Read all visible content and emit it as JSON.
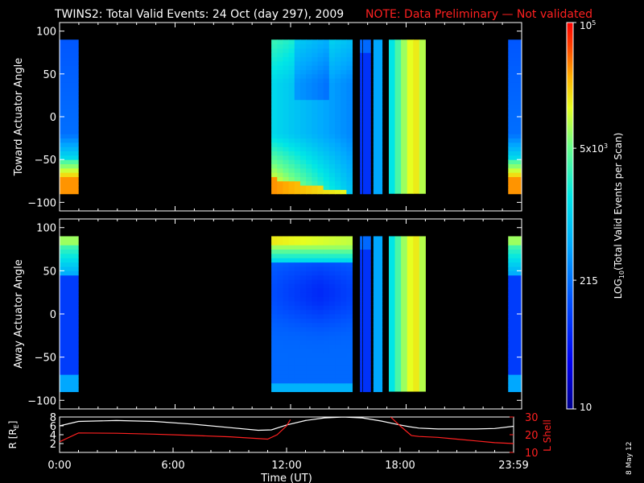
{
  "title": "TWINS2: Total Valid Events: 24 Oct (day 297), 2009",
  "note": "NOTE: Data Preliminary — Not validated",
  "side_date": "8 May 12",
  "chart_data": [
    {
      "type": "heatmap",
      "ylabel": "Toward Actuator Angle",
      "ylim": [
        -110,
        110
      ],
      "yticks": [
        100,
        50,
        0,
        -50,
        -100
      ],
      "ytick_labels": [
        "100",
        "50",
        "0",
        "−50",
        "−100"
      ],
      "xlim": [
        0,
        24
      ],
      "angle_range": [
        -90,
        90
      ],
      "blocks": [
        {
          "x": [
            0.0,
            0.97
          ],
          "profile": "toward"
        },
        {
          "x": [
            11.0,
            15.2
          ],
          "profile": "toward-decay"
        },
        {
          "x": [
            15.2,
            15.5
          ],
          "profile": "gap"
        },
        {
          "x": [
            15.6,
            15.7
          ],
          "profile": "flat-blue"
        },
        {
          "x": [
            15.75,
            16.15
          ],
          "profile": "flat-blue"
        },
        {
          "x": [
            16.3,
            16.75
          ],
          "profile": "flat-cyan"
        },
        {
          "x": [
            17.1,
            19.0
          ],
          "profile": "flat-bands"
        },
        {
          "x": [
            23.3,
            24.0
          ],
          "profile": "toward"
        }
      ]
    },
    {
      "type": "heatmap",
      "ylabel": "Away Actuator Angle",
      "ylim": [
        -110,
        110
      ],
      "yticks": [
        100,
        50,
        0,
        -50,
        -100
      ],
      "ytick_labels": [
        "100",
        "50",
        "0",
        "−50",
        "−100"
      ],
      "xlim": [
        0,
        24
      ],
      "angle_range": [
        -90,
        90
      ],
      "blocks": [
        {
          "x": [
            0.0,
            0.97
          ],
          "profile": "away"
        },
        {
          "x": [
            11.0,
            15.2
          ],
          "profile": "away-decay"
        },
        {
          "x": [
            15.2,
            15.5
          ],
          "profile": "gap"
        },
        {
          "x": [
            15.6,
            15.7
          ],
          "profile": "flat-blue"
        },
        {
          "x": [
            15.75,
            16.15
          ],
          "profile": "flat-blue"
        },
        {
          "x": [
            16.3,
            16.75
          ],
          "profile": "flat-cyan"
        },
        {
          "x": [
            17.1,
            19.0
          ],
          "profile": "flat-bands"
        },
        {
          "x": [
            23.3,
            24.0
          ],
          "profile": "away"
        }
      ]
    },
    {
      "type": "line",
      "ylabel_left": "R [R",
      "ylabel_left_sub": "E",
      "ylabel_left_end": "]",
      "ylabel_right": "L Shell",
      "xlabel": "Time (UT)",
      "xlim": [
        0,
        24
      ],
      "xticks": [
        0,
        6,
        12,
        18,
        24
      ],
      "xtick_labels": [
        "0:00",
        "6:00",
        "12:00",
        "18:00",
        "23:59"
      ],
      "ylim_left": [
        0,
        8
      ],
      "yticks_left": [
        2,
        4,
        6,
        8
      ],
      "ylim_right": [
        10,
        30
      ],
      "yticks_right": [
        10,
        20,
        30
      ],
      "series": [
        {
          "axis": "left",
          "color": "#ffffff",
          "x": [
            0.0,
            1.0,
            3.0,
            5.0,
            7.0,
            9.0,
            10.5,
            11.2,
            12.0,
            13.0,
            14.0,
            15.0,
            16.0,
            17.0,
            17.9,
            18.5,
            19.0,
            20.0,
            22.0,
            23.0,
            24.0
          ],
          "y": [
            6.0,
            7.0,
            7.2,
            7.0,
            6.4,
            5.6,
            5.0,
            5.1,
            6.2,
            7.2,
            7.8,
            8.0,
            7.8,
            7.1,
            6.3,
            5.8,
            5.5,
            5.3,
            5.3,
            5.4,
            5.9
          ]
        },
        {
          "axis": "right",
          "color": "#ff2020",
          "x": [
            0.0,
            1.0,
            3.0,
            5.0,
            7.0,
            9.0,
            11.0,
            11.5,
            12.0,
            12.2
          ],
          "y": [
            16.0,
            21.0,
            20.8,
            20.3,
            19.6,
            18.8,
            17.5,
            20.0,
            25.0,
            28.5
          ]
        },
        {
          "axis": "right",
          "color": "#ff2020",
          "x": [
            17.5,
            18.0,
            18.6,
            19.0,
            20.0,
            21.0,
            22.0,
            23.0,
            24.0
          ],
          "y": [
            30.0,
            25.0,
            19.5,
            19.0,
            18.5,
            17.5,
            16.5,
            15.5,
            15.0
          ]
        }
      ]
    },
    {
      "type": "colorbar",
      "label": "LOG",
      "label_sub": "10",
      "label_end": "(Total Valid Events per Scan)",
      "scale": "log",
      "range": [
        10,
        100000
      ],
      "ticks": [
        {
          "value": 100000,
          "base": "10",
          "exp": "5"
        },
        {
          "value": 5000,
          "base": "5x10",
          "exp": "3"
        },
        {
          "value": 215,
          "base": "215",
          "exp": ""
        },
        {
          "value": 10,
          "base": "10",
          "exp": ""
        }
      ]
    }
  ]
}
